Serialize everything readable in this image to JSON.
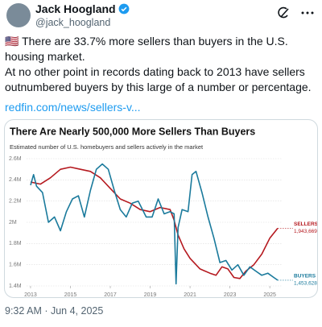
{
  "tweet": {
    "author": "Jack Hoogland",
    "handle": "@jack_hoogland",
    "text1": "🇺🇸 There are 33.7% more sellers than buyers in the U.S. housing market.",
    "text2": "At no other point in records dating back to 2013 have sellers outnumbered buyers by this large of a number or percentage.",
    "link": "redfin.com/news/sellers-v...",
    "timestamp": "9:32 AM · Jun 4, 2025"
  },
  "chart_data": {
    "type": "line",
    "title": "There Are Nearly 500,000 More Sellers Than Buyers",
    "subtitle": "Estimated number of U.S. homebuyers and sellers actively in the market",
    "xlim": [
      2012.8,
      2025.6
    ],
    "xticks": [
      2013,
      2015,
      2017,
      2019,
      2021,
      2023,
      2025
    ],
    "ylim": [
      1400000,
      2600000
    ],
    "yticks": [
      {
        "value": 1400000,
        "label": "1.4M"
      },
      {
        "value": 1600000,
        "label": "1.6M"
      },
      {
        "value": 1800000,
        "label": "1.8M"
      },
      {
        "value": 2000000,
        "label": "2M"
      },
      {
        "value": 2200000,
        "label": "2.2M"
      },
      {
        "value": 2400000,
        "label": "2.4M"
      },
      {
        "value": 2600000,
        "label": "2.6M"
      }
    ],
    "grid": true,
    "series": [
      {
        "name": "SELLERS",
        "color": "#b5191f",
        "x": [
          2013,
          2013.5,
          2014,
          2014.5,
          2015,
          2015.5,
          2016,
          2016.5,
          2017,
          2017.5,
          2018,
          2018.5,
          2019,
          2019.5,
          2020,
          2020.2,
          2020.4,
          2020.7,
          2021,
          2021.5,
          2022,
          2022.3,
          2022.6,
          2022.9,
          2023.2,
          2023.5,
          2023.8,
          2024.2,
          2024.6,
          2025,
          2025.4
        ],
        "values": [
          2380000,
          2360000,
          2420000,
          2500000,
          2520000,
          2500000,
          2480000,
          2420000,
          2320000,
          2220000,
          2180000,
          2120000,
          2100000,
          2140000,
          2120000,
          2020000,
          1880000,
          1750000,
          1660000,
          1560000,
          1520000,
          1500000,
          1580000,
          1560000,
          1480000,
          1470000,
          1540000,
          1600000,
          1700000,
          1850000,
          1943669
        ],
        "value_labels": [
          null,
          null,
          null,
          null,
          null,
          null,
          null,
          null,
          null,
          null,
          null,
          null,
          null,
          null,
          null,
          null,
          null,
          null,
          null,
          null,
          null,
          null,
          null,
          null,
          null,
          null,
          null,
          null,
          null,
          null,
          "1,943,669"
        ]
      },
      {
        "name": "BUYERS",
        "color": "#1a7a9c",
        "x": [
          2013,
          2013.15,
          2013.3,
          2013.6,
          2013.9,
          2014.2,
          2014.5,
          2014.8,
          2015.1,
          2015.4,
          2015.7,
          2016,
          2016.3,
          2016.6,
          2016.9,
          2017.2,
          2017.5,
          2017.8,
          2018.1,
          2018.4,
          2018.8,
          2019.1,
          2019.4,
          2019.7,
          2020,
          2020.2,
          2020.3,
          2020.4,
          2020.6,
          2020.9,
          2021.1,
          2021.3,
          2021.6,
          2021.9,
          2022.2,
          2022.5,
          2022.8,
          2023.1,
          2023.4,
          2023.7,
          2024,
          2024.3,
          2024.6,
          2024.9,
          2025.2,
          2025.4
        ],
        "values": [
          2350000,
          2450000,
          2340000,
          2280000,
          2000000,
          2050000,
          1920000,
          2100000,
          2220000,
          2250000,
          2050000,
          2300000,
          2500000,
          2550000,
          2500000,
          2300000,
          2120000,
          2050000,
          2180000,
          2200000,
          2050000,
          2050000,
          2220000,
          2080000,
          2100000,
          2080000,
          1420000,
          1950000,
          2120000,
          2100000,
          2450000,
          2480000,
          2280000,
          2050000,
          1850000,
          1620000,
          1640000,
          1550000,
          1600000,
          1500000,
          1580000,
          1540000,
          1500000,
          1520000,
          1480000,
          1453628
        ],
        "value_labels": [
          null,
          null,
          null,
          null,
          null,
          null,
          null,
          null,
          null,
          null,
          null,
          null,
          null,
          null,
          null,
          null,
          null,
          null,
          null,
          null,
          null,
          null,
          null,
          null,
          null,
          null,
          null,
          null,
          null,
          null,
          null,
          null,
          null,
          null,
          null,
          null,
          null,
          null,
          null,
          null,
          null,
          null,
          null,
          null,
          null,
          "1,453,628"
        ]
      }
    ]
  }
}
